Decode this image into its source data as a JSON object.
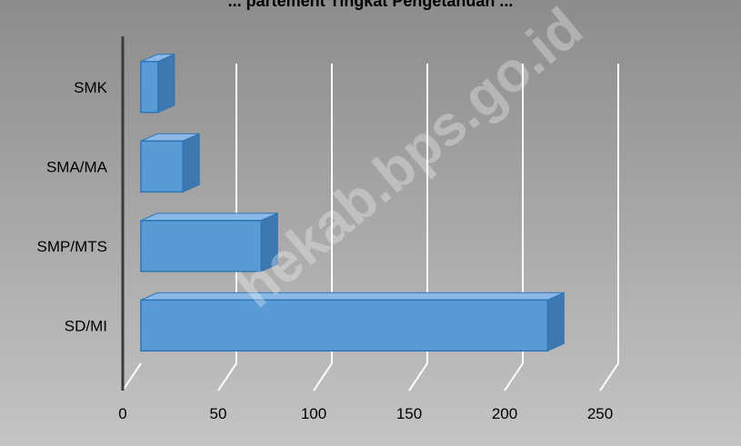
{
  "chart_data": {
    "type": "bar",
    "orientation": "horizontal",
    "style": "3d",
    "title": "... partement Tingkat Pengetahuan ...",
    "categories": [
      "SD/MI",
      "SMP/MTS",
      "SMA/MA",
      "SMK"
    ],
    "values": [
      213,
      63,
      22,
      9
    ],
    "x_ticks": [
      "0",
      "50",
      "100",
      "150",
      "200",
      "250"
    ],
    "xlim": [
      0,
      250
    ],
    "grid": true,
    "legend": "none",
    "colors": {
      "bar": "#5b9bd5",
      "bar_side": "#3f78b0",
      "bar_top": "#8bb8e6",
      "bar_stroke": "#2e75b6",
      "background_top": "#8c8c8c",
      "background_bottom": "#c2c2c2",
      "grid": "#ffffff"
    },
    "watermark": "hekab.bps.go.id"
  }
}
